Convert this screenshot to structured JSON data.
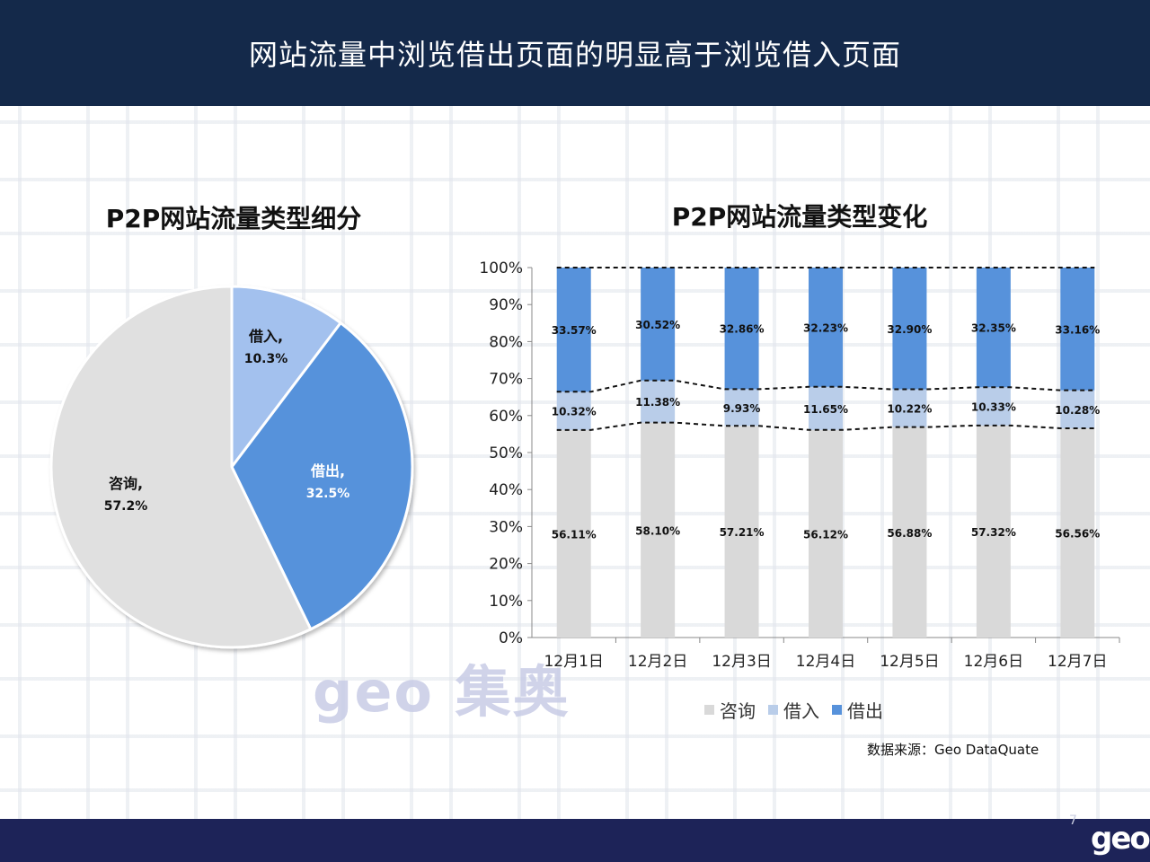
{
  "header": {
    "title": "网站流量中浏览借出页面的明显高于浏览借入页面"
  },
  "watermark": "geo 集奥",
  "source": "数据来源：Geo DataQuate",
  "page_number": "7",
  "footer_logo": "geo",
  "colors": {
    "consult": "#d9d9d9",
    "borrow_in": "#b9cde9",
    "borrow_out": "#5792db",
    "header": "#14294a",
    "footer": "#1d2358"
  },
  "chart_data": [
    {
      "type": "pie",
      "title": "P2P网站流量类型细分",
      "slices": [
        {
          "name": "借入",
          "value": 10.3,
          "label": "借入,",
          "pct": "10.3%",
          "color": "#a3c1ee"
        },
        {
          "name": "借出",
          "value": 32.5,
          "label": "借出,",
          "pct": "32.5%",
          "color": "#5792db"
        },
        {
          "name": "咨询",
          "value": 57.2,
          "label": "咨询,",
          "pct": "57.2%",
          "color": "#e0e0e0"
        }
      ]
    },
    {
      "type": "bar",
      "stacked": "percent",
      "title": "P2P网站流量类型变化",
      "categories": [
        "12月1日",
        "12月2日",
        "12月3日",
        "12月4日",
        "12月5日",
        "12月6日",
        "12月7日"
      ],
      "series": [
        {
          "name": "咨询",
          "values": [
            56.11,
            58.1,
            57.21,
            56.12,
            56.88,
            57.32,
            56.56
          ],
          "labels": [
            "56.11%",
            "58.10%",
            "57.21%",
            "56.12%",
            "56.88%",
            "57.32%",
            "56.56%"
          ],
          "color": "#d9d9d9"
        },
        {
          "name": "借入",
          "values": [
            10.32,
            11.38,
            9.93,
            11.65,
            10.22,
            10.33,
            10.28
          ],
          "labels": [
            "10.32%",
            "11.38%",
            "9.93%",
            "11.65%",
            "10.22%",
            "10.33%",
            "10.28%"
          ],
          "color": "#b9cde9"
        },
        {
          "name": "借出",
          "values": [
            33.57,
            30.52,
            32.86,
            32.23,
            32.9,
            32.35,
            33.16
          ],
          "labels": [
            "33.57%",
            "30.52%",
            "32.86%",
            "32.23%",
            "32.90%",
            "32.35%",
            "33.16%"
          ],
          "color": "#5792db"
        }
      ],
      "y_ticks": [
        "0%",
        "10%",
        "20%",
        "30%",
        "40%",
        "50%",
        "60%",
        "70%",
        "80%",
        "90%",
        "100%"
      ],
      "ylim": [
        0,
        100
      ],
      "legend": "bottom",
      "series_lines": "dashed"
    }
  ]
}
